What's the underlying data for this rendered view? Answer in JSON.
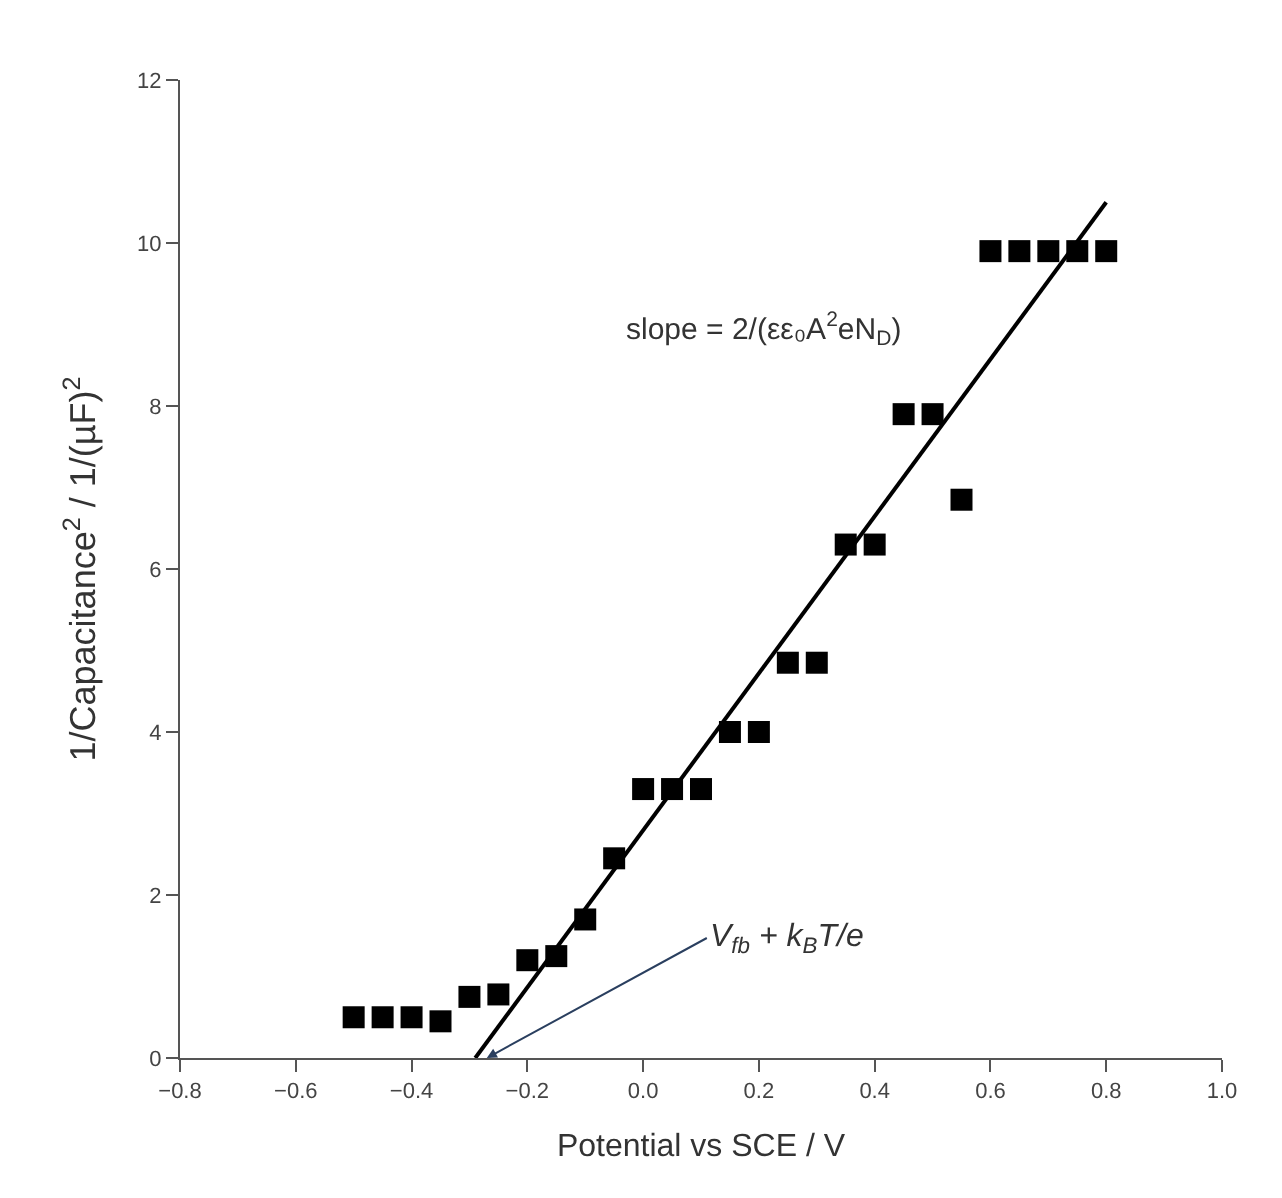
{
  "chart_data": {
    "type": "scatter",
    "xlabel": "Potential vs SCE / V",
    "ylabel": "1/Capacitance$^{2}$ / 1/(µF)$^{2}$",
    "x": [
      -0.5,
      -0.45,
      -0.4,
      -0.35,
      -0.3,
      -0.25,
      -0.2,
      -0.15,
      -0.1,
      -0.05,
      0,
      0.05,
      0.1,
      0.15,
      0.2,
      0.25,
      0.3,
      0.35,
      0.4,
      0.45,
      0.5,
      0.55,
      0.6,
      0.65,
      0.7,
      0.75,
      0.8
    ],
    "series": [
      {
        "color": "#000000",
        "marker": "square",
        "values": [
          0.5,
          0.5,
          0.5,
          0.45,
          0.75,
          0.78,
          1.2,
          1.25,
          1.7,
          2.45,
          3.3,
          3.3,
          3.3,
          4.0,
          4.0,
          4.85,
          4.85,
          6.3,
          6.3,
          7.9,
          7.9,
          6.85,
          9.9,
          9.9,
          9.9,
          9.9,
          9.9
        ]
      },
      {
        "type": "line",
        "color": "#000000",
        "marker": "none",
        "line_style": "solid",
        "x": [
          -0.29,
          0.8
        ],
        "values": [
          0,
          10.5
        ]
      }
    ],
    "annotations": [
      "slope = 2/(εε₀A$^{2}$eN$_{D}$)",
      {
        "text": "V$_{fb}$ + k$_{B}$T/e",
        "x": -0.27,
        "y": 0
      }
    ],
    "xlim": [
      -0.8,
      1.0
    ],
    "xticks": [
      {
        "value": -0.8,
        "label": "−0.8"
      },
      {
        "value": -0.6,
        "label": "−0.6"
      },
      {
        "value": -0.4,
        "label": "−0.4"
      },
      {
        "value": -0.2,
        "label": "−0.2"
      },
      {
        "value": 0,
        "label": "0.0"
      },
      {
        "value": 0.2,
        "label": "0.2"
      },
      {
        "value": 0.4,
        "label": "0.4"
      },
      {
        "value": 0.6,
        "label": "0.6"
      },
      {
        "value": 0.8,
        "label": "0.8"
      },
      {
        "value": 1.0,
        "label": "1.0"
      }
    ],
    "ylim": [
      0,
      12
    ],
    "yticks": [
      0,
      2,
      4,
      6,
      8,
      10,
      12
    ]
  }
}
